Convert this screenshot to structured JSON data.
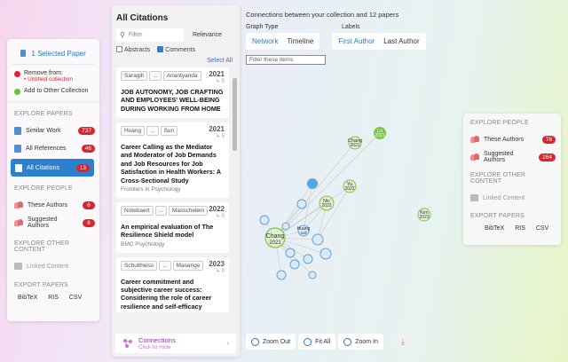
{
  "left": {
    "selected": "1 Selected Paper",
    "remove_label": "Remove from:",
    "remove_sub": "Untitled collection",
    "add_label": "Add to Other Collection",
    "sec_papers": "EXPLORE PAPERS",
    "papers": [
      {
        "label": "Similar Work",
        "count": "737"
      },
      {
        "label": "All References",
        "count": "46"
      },
      {
        "label": "All Citations",
        "count": "13"
      }
    ],
    "sec_people": "EXPLORE PEOPLE",
    "people": [
      {
        "label": "These Authors",
        "count": "6"
      },
      {
        "label": "Suggested Authors",
        "count": "6"
      }
    ],
    "sec_other": "EXPLORE OTHER CONTENT",
    "linked": "Linked Content",
    "sec_export": "EXPORT PAPERS",
    "exports": [
      "BibTeX",
      "RIS",
      "CSV"
    ]
  },
  "center": {
    "title": "All Citations",
    "filter_placeholder": "Filter",
    "sort": "Relevance",
    "abstracts": "Abstracts",
    "comments": "Comments",
    "select_all": "Select All",
    "papers": [
      {
        "a1": "Saragih",
        "a2": "Anantyanda",
        "year": "2021",
        "count": "5",
        "title": "JOB AUTONOMY, JOB CRAFTING AND EMPLOYEES' WELL-BEING DURING WORKING FROM HOME",
        "journal": ""
      },
      {
        "a1": "Huang",
        "a2": "Sun",
        "year": "2021",
        "count": "5",
        "title": "Career Calling as the Mediator and Moderator of Job Demands and Job Resources for Job Satisfaction in Health Workers: A Cross-Sectional Study",
        "journal": "Frontiers in Psychology"
      },
      {
        "a1": "Notebaert",
        "a2": "Masschelein",
        "year": "2022",
        "count": "0",
        "title": "An empirical evaluation of The Resilience Shield model",
        "journal": "BMC Psychology"
      },
      {
        "a1": "Schultheiss",
        "a2": "Masenge",
        "year": "2023",
        "count": "0",
        "title": "Career commitment and subjective career success: Considering the role of career resilience and self-efficacy",
        "journal": ""
      }
    ],
    "ellipsis": "...",
    "conn_title": "Connections",
    "conn_sub": "Click to Hide"
  },
  "graph": {
    "title": "Connections between your collection and 12 papers",
    "type_label": "Graph Type",
    "labels_label": "Labels",
    "type_tabs": [
      "Network",
      "Timeline"
    ],
    "label_tabs": [
      "First Author",
      "Last Author"
    ],
    "filter_placeholder": "Filter these items",
    "nodes": [
      {
        "name": "Chang",
        "year": "2021"
      },
      {
        "name": "Lu",
        "year": "2021"
      },
      {
        "name": "Kim",
        "year": "2023"
      },
      {
        "name": "Nic",
        "year": "2022"
      },
      {
        "name": "Yu",
        "year": "2022"
      },
      {
        "name": "Chang",
        "year": "2021"
      },
      {
        "name": "Huang",
        "year": "null"
      }
    ],
    "zoom_out": "Zoom Out",
    "fit_all": "Fit All",
    "zoom_in": "Zoom In"
  },
  "right": {
    "sec_people": "EXPLORE PEOPLE",
    "people": [
      {
        "label": "These Authors",
        "count": "78"
      },
      {
        "label": "Suggested Authors",
        "count": "264"
      }
    ],
    "sec_other": "EXPLORE OTHER CONTENT",
    "linked": "Linked Content",
    "sec_export": "EXPORT PAPERS",
    "exports": [
      "BibTeX",
      "RIS",
      "CSV"
    ]
  },
  "colors": {
    "accent": "#2d7fd0",
    "badge": "#d9262c",
    "node_green": "#7fc24a",
    "node_blue": "#5aa4df",
    "connections": "#9b2ab6"
  }
}
